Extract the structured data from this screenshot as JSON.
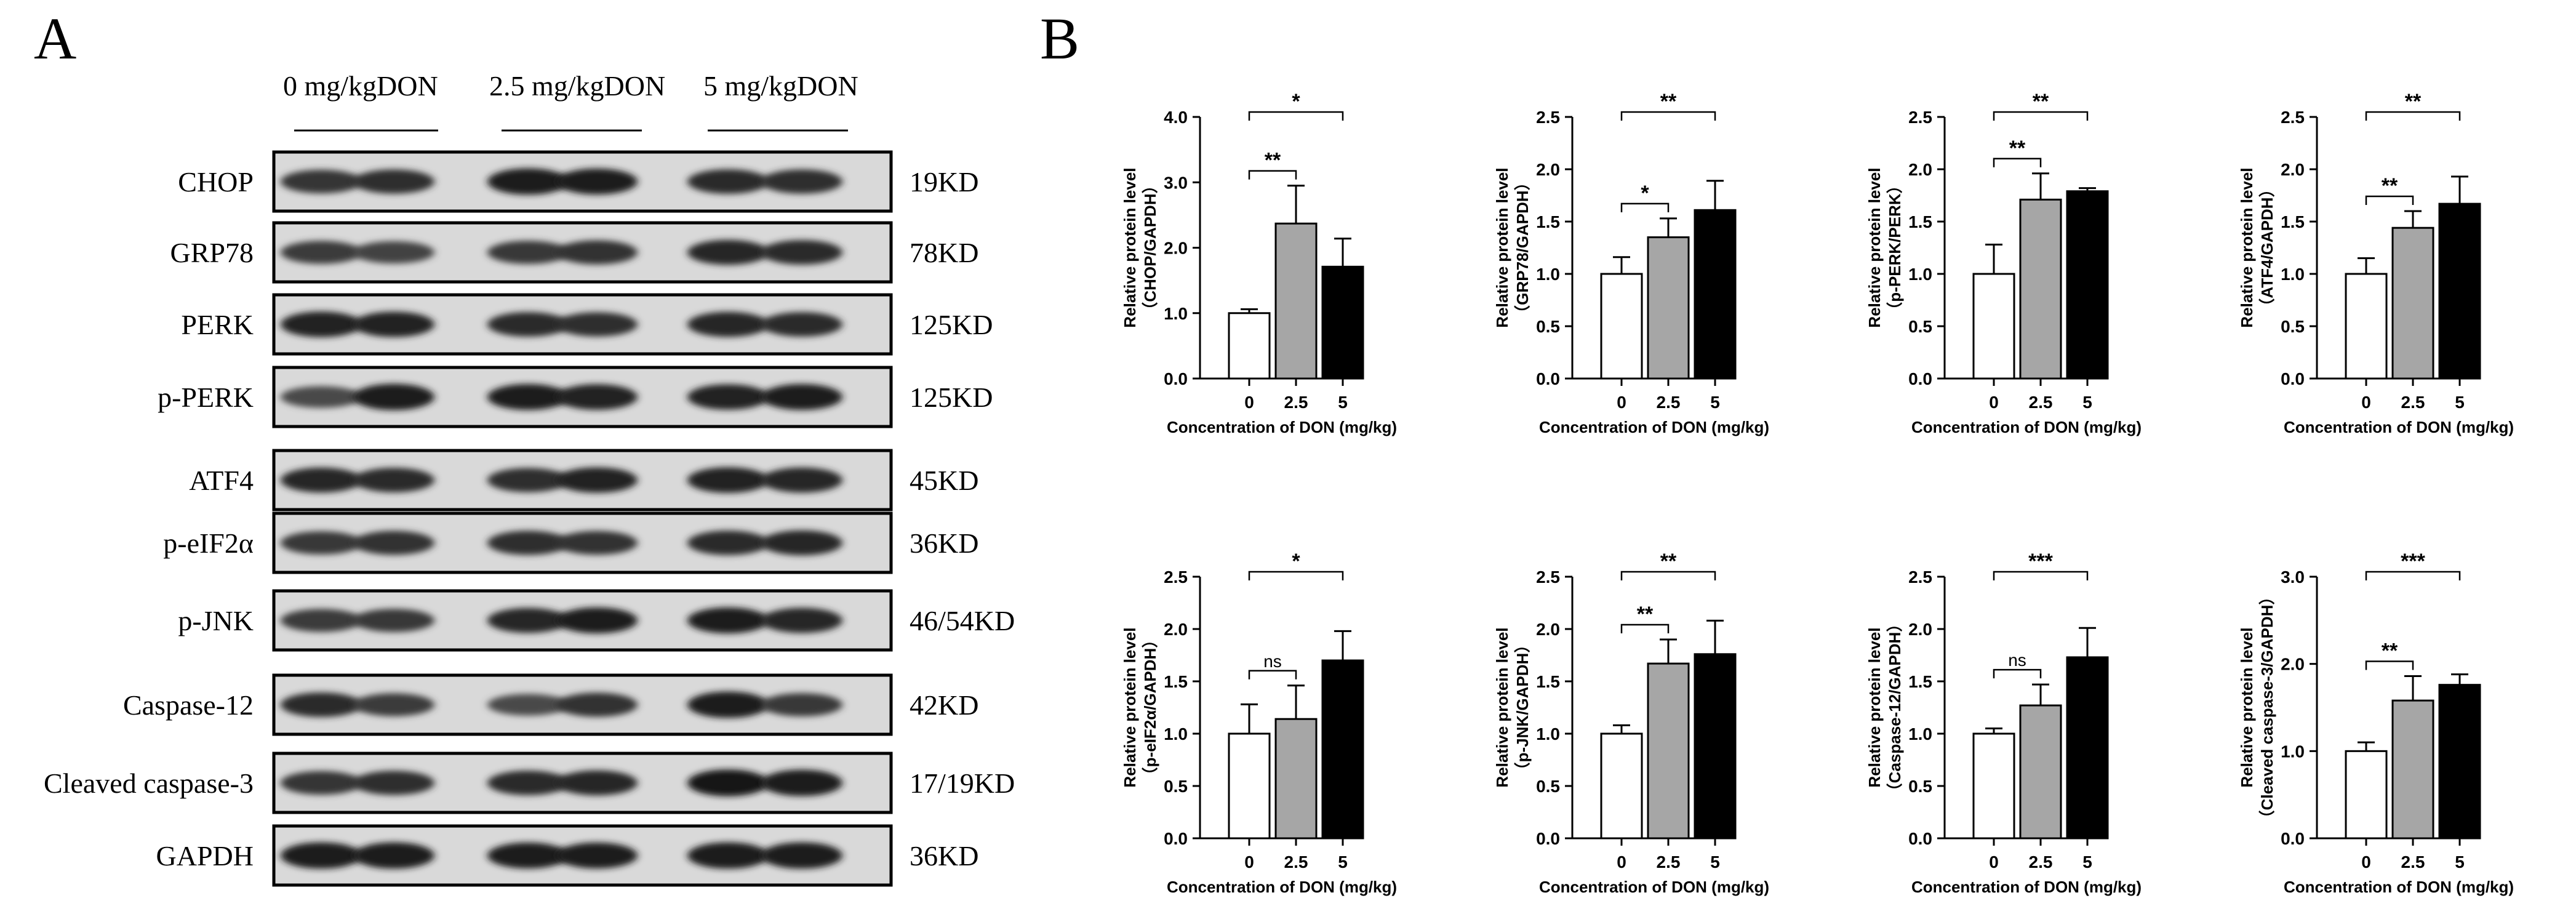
{
  "panels": {
    "a": "A",
    "b": "B"
  },
  "blot": {
    "groups": [
      "0 mg/kgDON",
      "2.5 mg/kgDON",
      "5 mg/kgDON"
    ],
    "rows": [
      {
        "protein": "CHOP",
        "size": "19KD"
      },
      {
        "protein": "GRP78",
        "size": "78KD"
      },
      {
        "protein": "PERK",
        "size": "125KD"
      },
      {
        "protein": "p-PERK",
        "size": "125KD"
      },
      {
        "protein": "ATF4",
        "size": "45KD"
      },
      {
        "protein": "p-eIF2α",
        "size": "36KD"
      },
      {
        "protein": "p-JNK",
        "size": "46/54KD"
      },
      {
        "protein": "Caspase-12",
        "size": "42KD"
      },
      {
        "protein": "Cleaved caspase-3",
        "size": "17/19KD"
      },
      {
        "protein": "GAPDH",
        "size": "36KD"
      }
    ],
    "band_intensity": [
      [
        0.75,
        0.8,
        0.95,
        0.92,
        0.82,
        0.8
      ],
      [
        0.7,
        0.65,
        0.72,
        0.78,
        0.85,
        0.82
      ],
      [
        0.9,
        0.88,
        0.82,
        0.8,
        0.86,
        0.82
      ],
      [
        0.6,
        0.95,
        0.92,
        0.9,
        0.88,
        0.92
      ],
      [
        0.85,
        0.82,
        0.8,
        0.88,
        0.9,
        0.86
      ],
      [
        0.72,
        0.78,
        0.8,
        0.76,
        0.82,
        0.85
      ],
      [
        0.7,
        0.72,
        0.85,
        0.92,
        0.92,
        0.86
      ],
      [
        0.82,
        0.7,
        0.6,
        0.78,
        0.95,
        0.72
      ],
      [
        0.75,
        0.8,
        0.82,
        0.85,
        0.98,
        0.95
      ],
      [
        0.95,
        0.95,
        0.92,
        0.92,
        0.95,
        0.95
      ]
    ]
  },
  "chart_data": [
    {
      "type": "bar",
      "title": "",
      "categories": [
        "0",
        "2.5",
        "5"
      ],
      "values": [
        1.0,
        2.37,
        1.71
      ],
      "errors": [
        0.06,
        0.58,
        0.43
      ],
      "fills": [
        "#ffffff",
        "#a6a6a6",
        "#000000"
      ],
      "xlabel": "Concentration of DON (mg/kg)",
      "ylabel": [
        "Relative protein level",
        "（CHOP/GAPDH）"
      ],
      "ylim": [
        0,
        4.0
      ],
      "yticks": [
        0,
        1.0,
        2.0,
        3.0,
        4.0
      ],
      "tick_labels": [
        "0.0",
        "1.0",
        "2.0",
        "3.0",
        "4.0"
      ],
      "significance": [
        {
          "from": 0,
          "to": 1,
          "label": "**",
          "level": 1
        },
        {
          "from": 0,
          "to": 2,
          "label": "*",
          "level": 2
        }
      ]
    },
    {
      "type": "bar",
      "title": "",
      "categories": [
        "0",
        "2.5",
        "5"
      ],
      "values": [
        1.0,
        1.35,
        1.61
      ],
      "errors": [
        0.16,
        0.18,
        0.28
      ],
      "fills": [
        "#ffffff",
        "#a6a6a6",
        "#000000"
      ],
      "xlabel": "Concentration of DON (mg/kg)",
      "ylabel": [
        "Relative protein level",
        "（GRP78/GAPDH）"
      ],
      "ylim": [
        0,
        2.5
      ],
      "yticks": [
        0,
        0.5,
        1.0,
        1.5,
        2.0,
        2.5
      ],
      "tick_labels": [
        "0.0",
        "0.5",
        "1.0",
        "1.5",
        "2.0",
        "2.5"
      ],
      "significance": [
        {
          "from": 0,
          "to": 1,
          "label": "*",
          "level": 1
        },
        {
          "from": 0,
          "to": 2,
          "label": "**",
          "level": 2
        }
      ]
    },
    {
      "type": "bar",
      "title": "",
      "categories": [
        "0",
        "2.5",
        "5"
      ],
      "values": [
        1.0,
        1.71,
        1.79
      ],
      "errors": [
        0.28,
        0.25,
        0.03
      ],
      "fills": [
        "#ffffff",
        "#a6a6a6",
        "#000000"
      ],
      "xlabel": "Concentration of DON (mg/kg)",
      "ylabel": [
        "Relative protein level",
        "（p-PERK/PERK）"
      ],
      "ylim": [
        0,
        2.5
      ],
      "yticks": [
        0,
        0.5,
        1.0,
        1.5,
        2.0,
        2.5
      ],
      "tick_labels": [
        "0.0",
        "0.5",
        "1.0",
        "1.5",
        "2.0",
        "2.5"
      ],
      "significance": [
        {
          "from": 0,
          "to": 1,
          "label": "**",
          "level": 1
        },
        {
          "from": 0,
          "to": 2,
          "label": "**",
          "level": 2
        }
      ]
    },
    {
      "type": "bar",
      "title": "",
      "categories": [
        "0",
        "2.5",
        "5"
      ],
      "values": [
        1.0,
        1.44,
        1.67
      ],
      "errors": [
        0.15,
        0.16,
        0.26
      ],
      "fills": [
        "#ffffff",
        "#a6a6a6",
        "#000000"
      ],
      "xlabel": "Concentration of DON (mg/kg)",
      "ylabel": [
        "Relative protein level",
        "（ATF4/GAPDH）"
      ],
      "ylim": [
        0,
        2.5
      ],
      "yticks": [
        0,
        0.5,
        1.0,
        1.5,
        2.0,
        2.5
      ],
      "tick_labels": [
        "0.0",
        "0.5",
        "1.0",
        "1.5",
        "2.0",
        "2.5"
      ],
      "significance": [
        {
          "from": 0,
          "to": 1,
          "label": "**",
          "level": 1
        },
        {
          "from": 0,
          "to": 2,
          "label": "**",
          "level": 2
        }
      ]
    },
    {
      "type": "bar",
      "title": "",
      "categories": [
        "0",
        "2.5",
        "5"
      ],
      "values": [
        1.0,
        1.14,
        1.7
      ],
      "errors": [
        0.28,
        0.32,
        0.28
      ],
      "fills": [
        "#ffffff",
        "#a6a6a6",
        "#000000"
      ],
      "xlabel": "Concentration of DON (mg/kg)",
      "ylabel": [
        "Relative protein level",
        "（p-eIF2α/GAPDH）"
      ],
      "ylim": [
        0,
        2.5
      ],
      "yticks": [
        0,
        0.5,
        1.0,
        1.5,
        2.0,
        2.5
      ],
      "tick_labels": [
        "0.0",
        "0.5",
        "1.0",
        "1.5",
        "2.0",
        "2.5"
      ],
      "significance": [
        {
          "from": 0,
          "to": 1,
          "label": "ns",
          "level": 1
        },
        {
          "from": 0,
          "to": 2,
          "label": "*",
          "level": 2
        }
      ]
    },
    {
      "type": "bar",
      "title": "",
      "categories": [
        "0",
        "2.5",
        "5"
      ],
      "values": [
        1.0,
        1.67,
        1.76
      ],
      "errors": [
        0.08,
        0.23,
        0.32
      ],
      "fills": [
        "#ffffff",
        "#a6a6a6",
        "#000000"
      ],
      "xlabel": "Concentration of DON (mg/kg)",
      "ylabel": [
        "Relative protein level",
        "（p-JNK/GAPDH）"
      ],
      "ylim": [
        0,
        2.5
      ],
      "yticks": [
        0,
        0.5,
        1.0,
        1.5,
        2.0,
        2.5
      ],
      "tick_labels": [
        "0.0",
        "0.5",
        "1.0",
        "1.5",
        "2.0",
        "2.5"
      ],
      "significance": [
        {
          "from": 0,
          "to": 1,
          "label": "**",
          "level": 1
        },
        {
          "from": 0,
          "to": 2,
          "label": "**",
          "level": 2
        }
      ]
    },
    {
      "type": "bar",
      "title": "",
      "categories": [
        "0",
        "2.5",
        "5"
      ],
      "values": [
        1.0,
        1.27,
        1.73
      ],
      "errors": [
        0.05,
        0.2,
        0.28
      ],
      "fills": [
        "#ffffff",
        "#a6a6a6",
        "#000000"
      ],
      "xlabel": "Concentration of DON (mg/kg)",
      "ylabel": [
        "Relative protein level",
        "（Caspase-12/GAPDH）"
      ],
      "ylim": [
        0,
        2.5
      ],
      "yticks": [
        0,
        0.5,
        1.0,
        1.5,
        2.0,
        2.5
      ],
      "tick_labels": [
        "0.0",
        "0.5",
        "1.0",
        "1.5",
        "2.0",
        "2.5"
      ],
      "significance": [
        {
          "from": 0,
          "to": 1,
          "label": "ns",
          "level": 1
        },
        {
          "from": 0,
          "to": 2,
          "label": "***",
          "level": 2
        }
      ]
    },
    {
      "type": "bar",
      "title": "",
      "categories": [
        "0",
        "2.5",
        "5"
      ],
      "values": [
        1.0,
        1.58,
        1.76
      ],
      "errors": [
        0.1,
        0.28,
        0.12
      ],
      "fills": [
        "#ffffff",
        "#a6a6a6",
        "#000000"
      ],
      "xlabel": "Concentration of DON (mg/kg)",
      "ylabel": [
        "Relative protein level",
        "（Cleaved caspase-3/GAPDH）"
      ],
      "ylim": [
        0,
        3.0
      ],
      "yticks": [
        0,
        1.0,
        2.0,
        3.0
      ],
      "tick_labels": [
        "0.0",
        "1.0",
        "2.0",
        "3.0"
      ],
      "significance": [
        {
          "from": 0,
          "to": 1,
          "label": "**",
          "level": 1
        },
        {
          "from": 0,
          "to": 2,
          "label": "***",
          "level": 2
        }
      ]
    }
  ]
}
